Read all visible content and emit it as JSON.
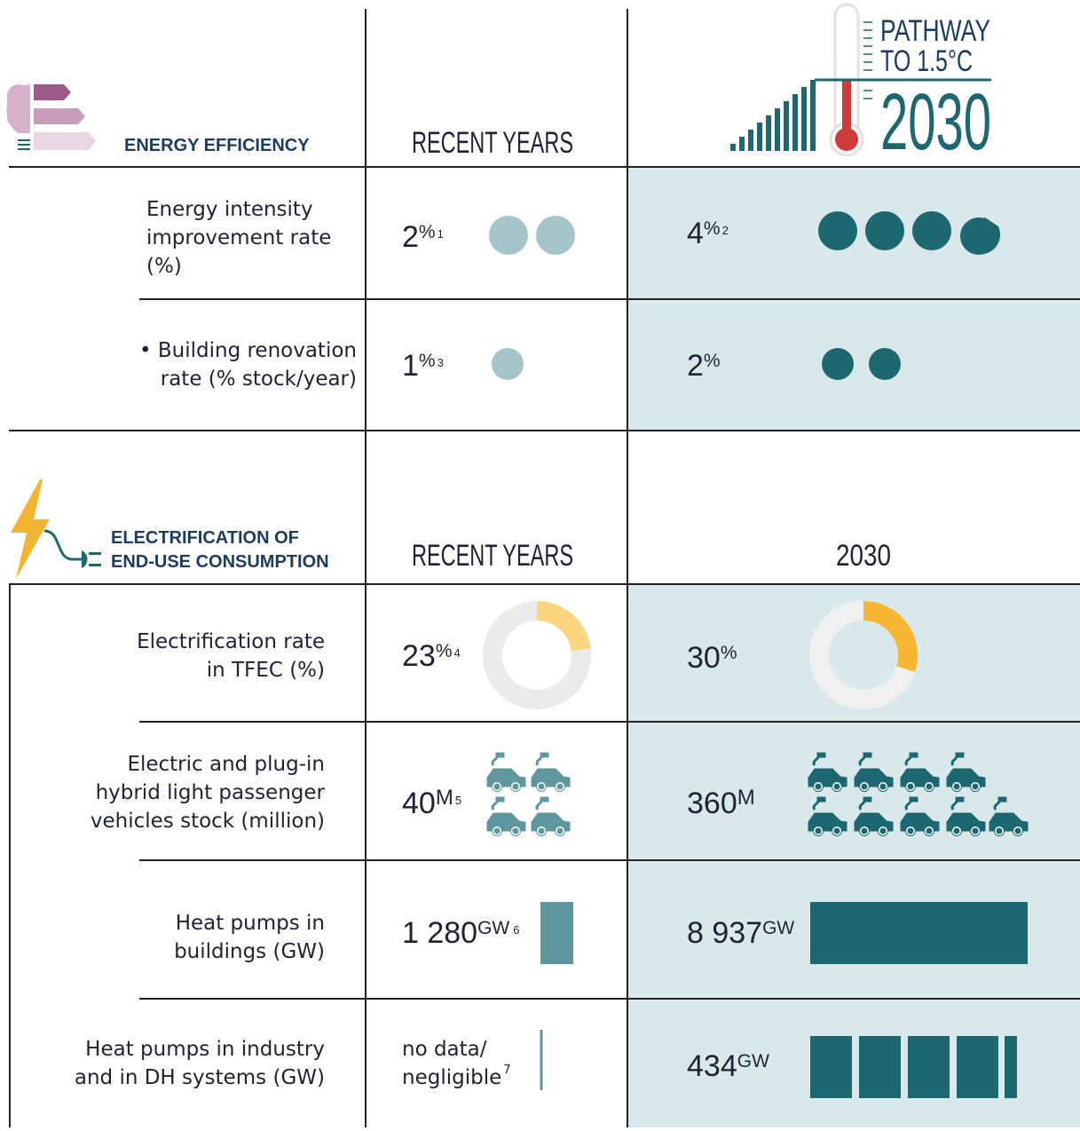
{
  "sections": [
    {
      "title": [
        "ENERGY EFFICIENCY"
      ],
      "col_recent": "RECENT YEARS",
      "col_target": {
        "lines": [
          "PATHWAY",
          "TO 1.5°C"
        ],
        "year": "2030"
      },
      "rows": [
        {
          "label": [
            "Energy intensity",
            "improvement rate",
            "(%)"
          ],
          "recent": {
            "value": "2",
            "unit": "%",
            "note": "1"
          },
          "target": {
            "value": "4",
            "unit": "%",
            "note": "2"
          }
        },
        {
          "label": [
            "• Building renovation",
            "rate (% stock/year)"
          ],
          "recent": {
            "value": "1",
            "unit": "%",
            "note": "3"
          },
          "target": {
            "value": "2",
            "unit": "%"
          }
        }
      ]
    },
    {
      "title": [
        "ELECTRIFICATION OF",
        "END-USE CONSUMPTION"
      ],
      "col_recent": "RECENT YEARS",
      "col_target": "2030",
      "rows": [
        {
          "label": [
            "Electrification rate",
            "in TFEC (%)"
          ],
          "recent": {
            "value": "23",
            "unit": "%",
            "note": "4"
          },
          "target": {
            "value": "30",
            "unit": "%"
          }
        },
        {
          "label": [
            "Electric and plug-in",
            "hybrid light passenger",
            "vehicles stock (million)"
          ],
          "recent": {
            "value": "40",
            "unit": "M",
            "note": "5"
          },
          "target": {
            "value": "360",
            "unit": "M"
          }
        },
        {
          "label": [
            "Heat pumps in",
            "buildings (GW)"
          ],
          "recent": {
            "value": "1 280",
            "unit": "GW",
            "note": "6"
          },
          "target": {
            "value": "8 937",
            "unit": "GW"
          }
        },
        {
          "label": [
            "Heat pumps in industry",
            "and in DH systems (GW)"
          ],
          "recent": {
            "lines": [
              "no data/",
              "negligible"
            ],
            "note": "7"
          },
          "target": {
            "value": "434",
            "unit": "GW"
          }
        }
      ]
    }
  ]
}
